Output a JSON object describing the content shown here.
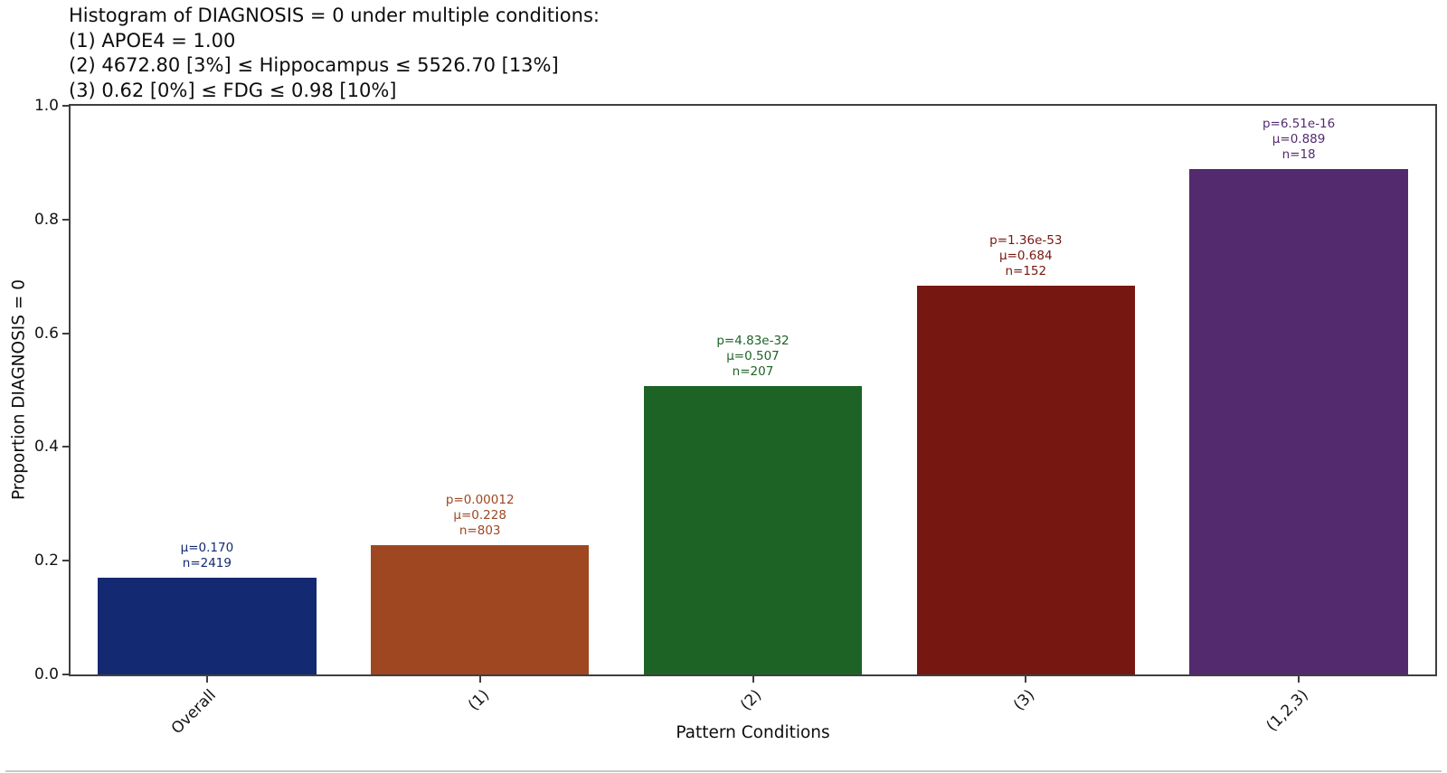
{
  "title_lines": [
    "Histogram of DIAGNOSIS = 0 under multiple conditions:",
    "(1) APOE4 = 1.00",
    "(2) 4672.80 [3%] ≤ Hippocampus ≤ 5526.70 [13%]",
    "(3) 0.62 [0%] ≤ FDG ≤ 0.98 [10%]"
  ],
  "chart_data": {
    "type": "bar",
    "title": "Histogram of DIAGNOSIS = 0 under multiple conditions:",
    "condition_lines": [
      "(1) APOE4 = 1.00",
      "(2) 4672.80 [3%] ≤ Hippocampus ≤ 5526.70 [13%]",
      "(3) 0.62 [0%] ≤ FDG ≤ 0.98 [10%]"
    ],
    "xlabel": "Pattern Conditions",
    "ylabel": "Proportion DIAGNOSIS = 0",
    "ylim": [
      0.0,
      1.0
    ],
    "yticks": [
      0.0,
      0.2,
      0.4,
      0.6,
      0.8,
      1.0
    ],
    "ytick_labels": [
      "0.0",
      "0.2",
      "0.4",
      "0.6",
      "0.8",
      "1.0"
    ],
    "grid": false,
    "legend": "none",
    "bar_width_fraction": 0.8,
    "categories": [
      "Overall",
      "(1)",
      "(2)",
      "(3)",
      "(1,2,3)"
    ],
    "values": [
      0.17,
      0.228,
      0.507,
      0.684,
      0.889
    ],
    "bars": [
      {
        "label": "Overall",
        "value": 0.17,
        "mu": "0.170",
        "n": "2419",
        "color": "#132a72",
        "annotation_lines": [
          "μ=0.170",
          "n=2419"
        ]
      },
      {
        "label": "(1)",
        "value": 0.228,
        "p": "0.00012",
        "mu": "0.228",
        "n": "803",
        "color": "#9e4721",
        "annotation_lines": [
          "p=0.00012",
          "μ=0.228",
          "n=803"
        ]
      },
      {
        "label": "(2)",
        "value": 0.507,
        "p": "4.83e-32",
        "mu": "0.507",
        "n": "207",
        "color": "#1e6326",
        "annotation_lines": [
          "p=4.83e-32",
          "μ=0.507",
          "n=207"
        ]
      },
      {
        "label": "(3)",
        "value": 0.684,
        "p": "1.36e-53",
        "mu": "0.684",
        "n": "152",
        "color": "#771712",
        "annotation_lines": [
          "p=1.36e-53",
          "μ=0.684",
          "n=152"
        ]
      },
      {
        "label": "(1,2,3)",
        "value": 0.889,
        "p": "6.51e-16",
        "mu": "0.889",
        "n": "18",
        "color": "#542a6e",
        "annotation_lines": [
          "p=6.51e-16",
          "μ=0.889",
          "n=18"
        ]
      }
    ]
  }
}
